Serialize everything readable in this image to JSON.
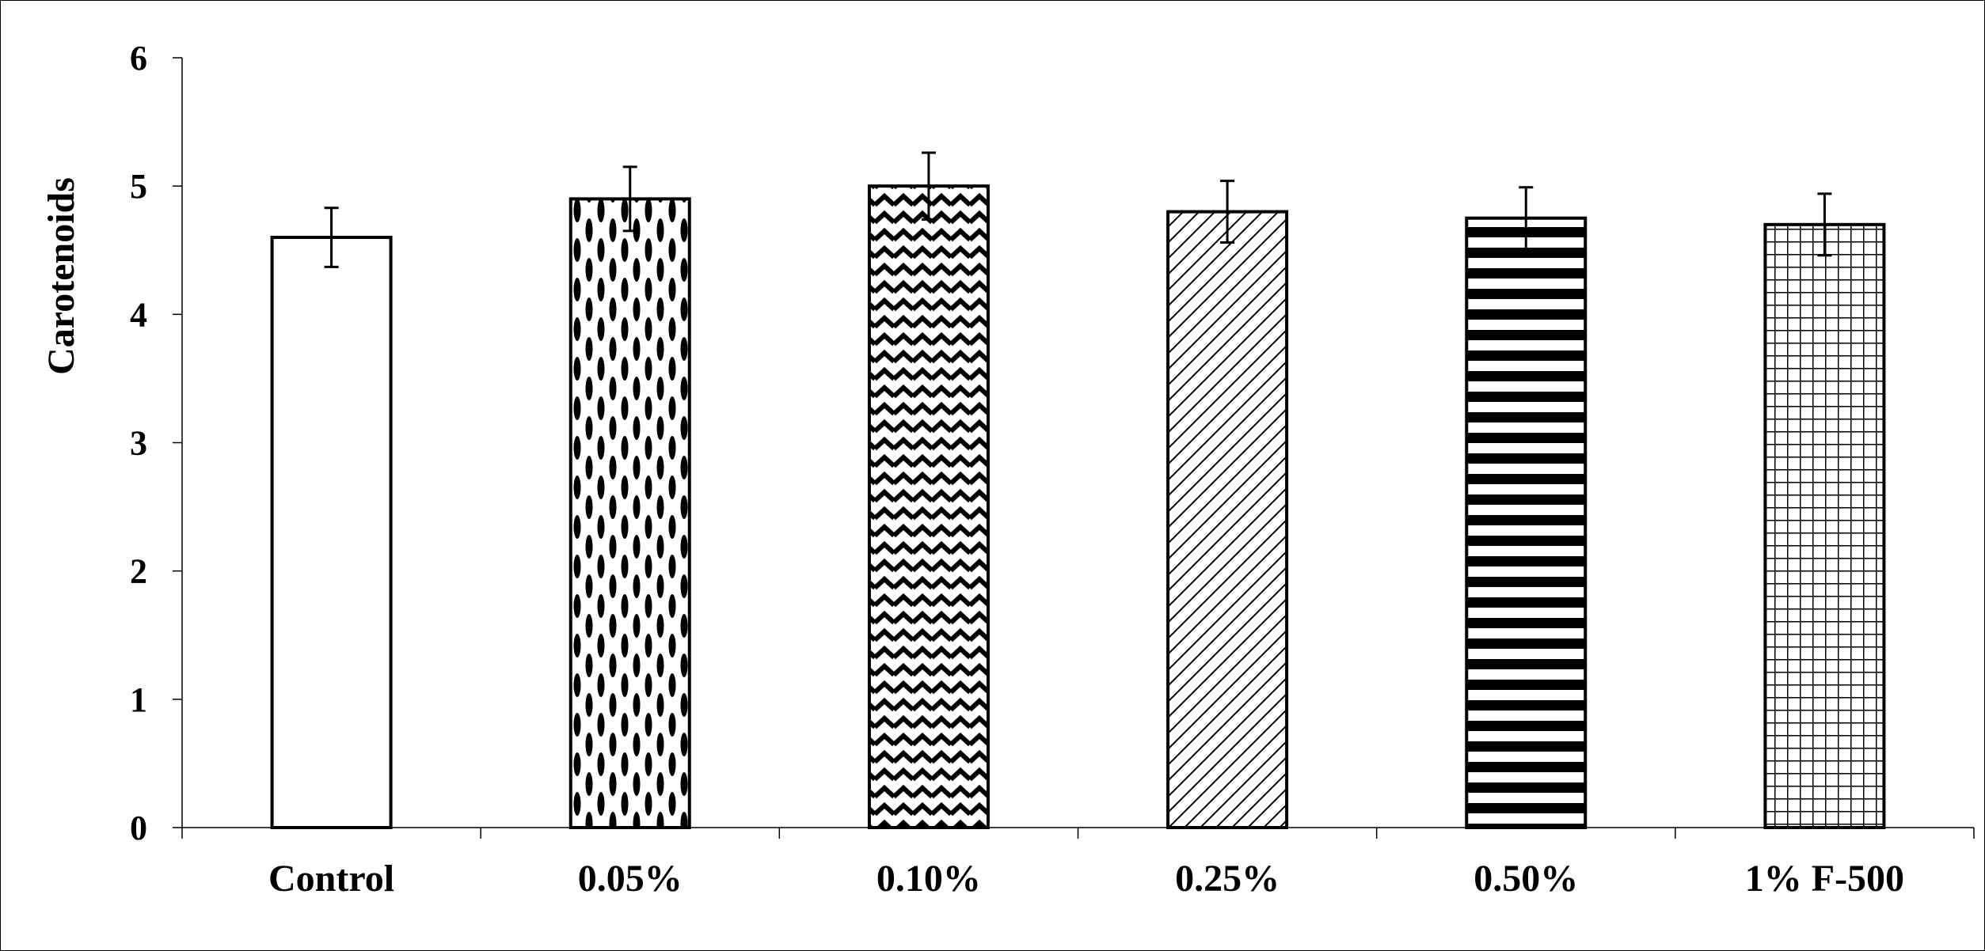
{
  "chart_data": {
    "type": "bar",
    "title": "",
    "xlabel": "",
    "ylabel": "Carotenoids",
    "ylim": [
      0,
      6
    ],
    "yticks": [
      "0",
      "1",
      "2",
      "3",
      "4",
      "5",
      "6"
    ],
    "grid": false,
    "categories": [
      "Control",
      "0.05%",
      "0.10%",
      "0.25%",
      "0.50%",
      "1% F-500"
    ],
    "values": [
      4.6,
      4.9,
      5.0,
      4.8,
      4.75,
      4.7
    ],
    "errors": [
      0.23,
      0.25,
      0.26,
      0.24,
      0.24,
      0.24
    ],
    "patterns": [
      "none",
      "ellipses",
      "zigzag",
      "diagonal",
      "horizontal-bands",
      "grid"
    ],
    "colors": {
      "bar_stroke": "#000000",
      "bar_fill": "#ffffff",
      "pattern": "#000000"
    }
  }
}
